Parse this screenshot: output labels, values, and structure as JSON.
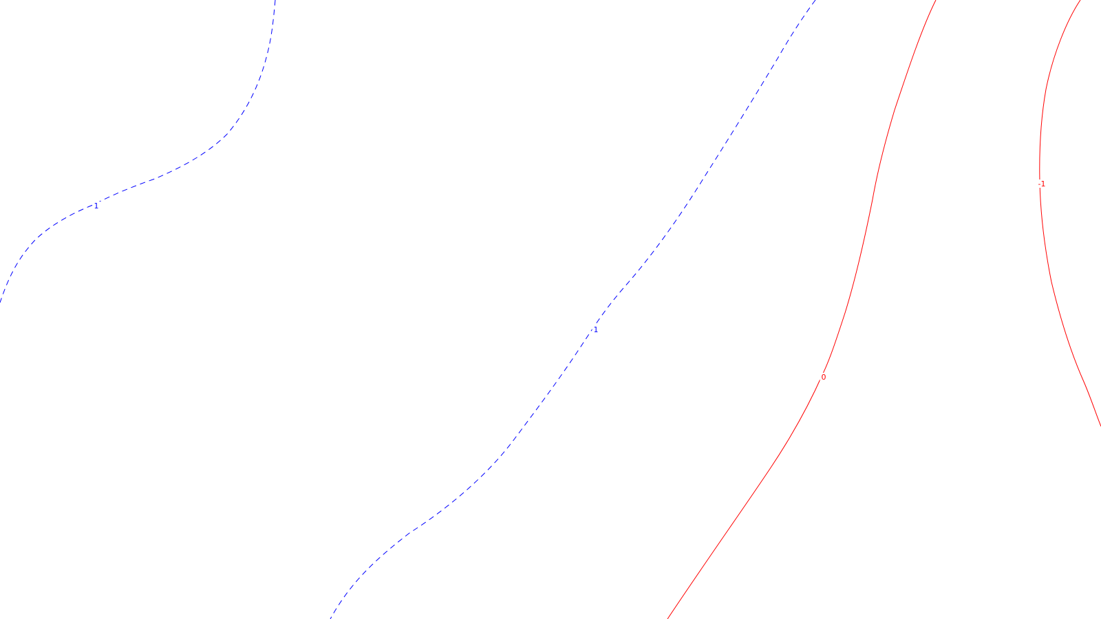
{
  "chart_data": {
    "type": "contour",
    "title": "",
    "xlabel": "",
    "ylabel": "",
    "grid": false,
    "legend": "none",
    "contours": [
      {
        "level": "1",
        "linestyle": "dashed",
        "color": "#0000ff"
      },
      {
        "level": "1",
        "linestyle": "dashed",
        "color": "#0000ff"
      },
      {
        "level": "0",
        "linestyle": "solid",
        "color": "#ff0000"
      },
      {
        "level": "-1",
        "linestyle": "solid",
        "color": "#ff0000"
      }
    ]
  }
}
